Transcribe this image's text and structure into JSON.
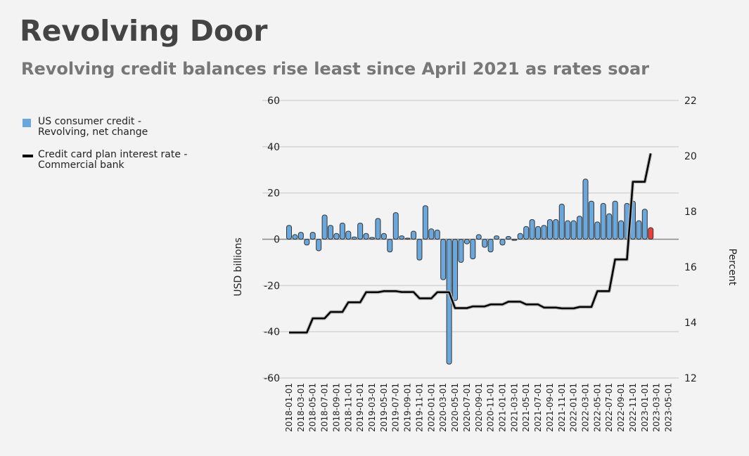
{
  "title": "Revolving Door",
  "subtitle": "Revolving credit balances rise least since April 2021 as rates soar",
  "colors": {
    "bar": "#6aa7dd",
    "bar_last": "#e8413b",
    "line": "#000000"
  },
  "chart_data": {
    "type": "bar+line",
    "title": "Revolving Door",
    "subtitle": "Revolving credit balances rise least since April 2021 as rates soar",
    "ylabel_left": "USD billions",
    "ylabel_right": "Percent",
    "ylim_left": [
      -60,
      60
    ],
    "ylim_right": [
      12,
      22
    ],
    "yticks_left": [
      "60",
      "40",
      "20",
      "0",
      "-20",
      "-40",
      "-60"
    ],
    "yticks_right": [
      "22",
      "20",
      "18",
      "16",
      "14",
      "12"
    ],
    "grid": true,
    "legend_placement": "left",
    "x_start": "2018-01",
    "x_months": 65,
    "xtick_labels": [
      "2018-01-01",
      "2018-03-01",
      "2018-05-01",
      "2018-07-01",
      "2018-09-01",
      "2018-11-01",
      "2019-01-01",
      "2019-03-01",
      "2019-05-01",
      "2019-07-01",
      "2019-09-01",
      "2019-11-01",
      "2020-01-01",
      "2020-03-01",
      "2020-05-01",
      "2020-07-01",
      "2020-09-01",
      "2020-11-01",
      "2021-01-01",
      "2021-03-01",
      "2021-05-01",
      "2021-07-01",
      "2021-09-01",
      "2021-11-01",
      "2022-01-01",
      "2022-03-01",
      "2022-05-01",
      "2022-07-01",
      "2022-09-01",
      "2022-11-01",
      "2023-01-01",
      "2023-03-01",
      "2023-05-01"
    ],
    "series": [
      {
        "name": "US consumer credit - Revolving, net change",
        "type": "bar",
        "axis": "left",
        "values": [
          6,
          2,
          3,
          -2.5,
          3,
          -5,
          10.5,
          6,
          2.5,
          7,
          3.5,
          1,
          7,
          2.5,
          0.8,
          9,
          2.5,
          -5.5,
          11.5,
          1.5,
          0.5,
          3.5,
          -9,
          14.5,
          4.5,
          4,
          -17.5,
          -54,
          -26.5,
          -10,
          -2,
          -8.5,
          2,
          -3.5,
          -5.5,
          1.5,
          -2.5,
          1.2,
          -0.5,
          2.5,
          5.5,
          8.5,
          5.5,
          6,
          8.5,
          8.5,
          15.2,
          8,
          8,
          10,
          26,
          16.5,
          7.5,
          15.5,
          11,
          16.5,
          8,
          15.5,
          16.5,
          8,
          13,
          5
        ]
      },
      {
        "name": "Credit card plan interest rate - Commercial bank",
        "type": "line",
        "axis": "right",
        "values": [
          13.64,
          13.64,
          13.64,
          13.64,
          14.15,
          14.15,
          14.15,
          14.38,
          14.38,
          14.38,
          14.73,
          14.73,
          14.73,
          15.09,
          15.09,
          15.09,
          15.13,
          15.13,
          15.13,
          15.1,
          15.1,
          15.1,
          14.87,
          14.87,
          14.87,
          15.09,
          15.09,
          15.09,
          14.52,
          14.52,
          14.52,
          14.58,
          14.58,
          14.58,
          14.65,
          14.65,
          14.65,
          14.75,
          14.75,
          14.75,
          14.65,
          14.65,
          14.65,
          14.54,
          14.54,
          14.54,
          14.51,
          14.51,
          14.51,
          14.56,
          14.56,
          14.56,
          15.13,
          15.13,
          15.13,
          16.27,
          16.27,
          16.27,
          19.07,
          19.07,
          19.07,
          20.09
        ]
      }
    ]
  },
  "legend": [
    {
      "line1": "US consumer credit -",
      "line2": "Revolving, net change"
    },
    {
      "line1": "Credit card plan interest rate -",
      "line2": "Commercial bank"
    }
  ]
}
